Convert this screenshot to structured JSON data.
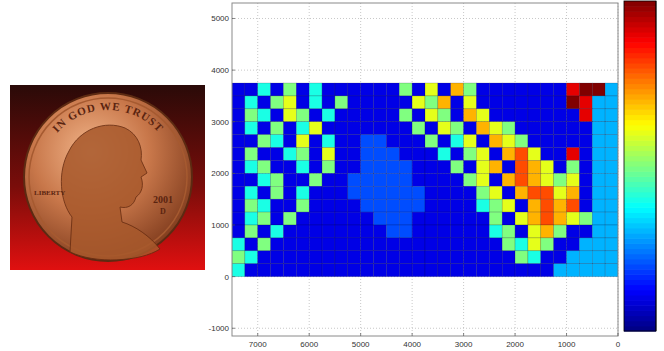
{
  "photo": {
    "inscription": "IN GOD WE TRUST",
    "liberty": "LIBERTY",
    "year": "2001",
    "mint_mark": "D"
  },
  "chart_data": {
    "type": "heatmap",
    "x": [
      7375,
      7125,
      6875,
      6625,
      6375,
      6125,
      5875,
      5625,
      5375,
      5125,
      4875,
      4625,
      4375,
      4125,
      3875,
      3625,
      3375,
      3125,
      2875,
      2625,
      2375,
      2125,
      1875,
      1625,
      1375,
      1125,
      875,
      625,
      375,
      125
    ],
    "y": [
      3625,
      3375,
      3125,
      2875,
      2625,
      2375,
      2125,
      1875,
      1625,
      1375,
      1125,
      875,
      625,
      375,
      125
    ],
    "cells": [
      [
        1,
        1,
        4,
        1,
        5,
        1,
        4,
        1,
        1,
        1,
        1,
        1,
        1,
        5,
        1,
        6,
        1,
        7,
        5,
        1,
        1,
        1,
        1,
        1,
        1,
        1,
        9,
        10,
        10,
        3
      ],
      [
        1,
        4,
        1,
        5,
        6,
        1,
        4,
        1,
        5,
        1,
        1,
        1,
        1,
        1,
        6,
        5,
        7,
        1,
        6,
        1,
        1,
        1,
        1,
        1,
        1,
        1,
        10,
        9,
        3,
        3
      ],
      [
        1,
        5,
        4,
        1,
        6,
        5,
        1,
        4,
        1,
        1,
        1,
        1,
        1,
        5,
        1,
        6,
        5,
        1,
        7,
        6,
        1,
        1,
        1,
        1,
        1,
        1,
        1,
        9,
        3,
        3
      ],
      [
        1,
        4,
        1,
        5,
        1,
        4,
        6,
        1,
        1,
        1,
        1,
        1,
        1,
        1,
        5,
        1,
        6,
        5,
        1,
        7,
        6,
        5,
        1,
        1,
        1,
        1,
        1,
        1,
        3,
        3
      ],
      [
        1,
        1,
        5,
        4,
        1,
        6,
        1,
        4,
        1,
        1,
        2,
        2,
        1,
        1,
        1,
        5,
        1,
        4,
        6,
        1,
        7,
        6,
        5,
        1,
        1,
        1,
        1,
        1,
        3,
        3
      ],
      [
        1,
        5,
        1,
        1,
        4,
        5,
        1,
        6,
        1,
        1,
        2,
        2,
        2,
        1,
        1,
        1,
        4,
        1,
        5,
        6,
        1,
        7,
        8,
        6,
        1,
        1,
        9,
        1,
        3,
        3
      ],
      [
        1,
        4,
        5,
        1,
        1,
        4,
        1,
        5,
        1,
        1,
        2,
        2,
        2,
        2,
        1,
        1,
        1,
        5,
        1,
        6,
        7,
        1,
        8,
        7,
        6,
        1,
        5,
        1,
        3,
        3
      ],
      [
        1,
        1,
        4,
        5,
        1,
        1,
        5,
        1,
        1,
        2,
        2,
        2,
        2,
        2,
        1,
        1,
        1,
        1,
        5,
        6,
        1,
        7,
        8,
        7,
        6,
        5,
        6,
        1,
        3,
        3
      ],
      [
        1,
        4,
        1,
        5,
        1,
        4,
        1,
        1,
        1,
        2,
        2,
        2,
        2,
        2,
        2,
        1,
        1,
        1,
        1,
        5,
        6,
        1,
        7,
        8,
        8,
        6,
        7,
        1,
        3,
        3
      ],
      [
        1,
        5,
        4,
        1,
        1,
        5,
        1,
        1,
        1,
        1,
        2,
        2,
        2,
        2,
        2,
        1,
        1,
        1,
        1,
        4,
        5,
        6,
        1,
        7,
        8,
        7,
        8,
        1,
        3,
        3
      ],
      [
        1,
        4,
        5,
        1,
        5,
        1,
        1,
        1,
        1,
        1,
        1,
        2,
        2,
        2,
        1,
        1,
        1,
        1,
        1,
        1,
        5,
        1,
        6,
        7,
        8,
        7,
        6,
        5,
        3,
        3
      ],
      [
        1,
        5,
        1,
        4,
        1,
        1,
        1,
        1,
        1,
        1,
        1,
        1,
        2,
        2,
        1,
        1,
        1,
        1,
        1,
        1,
        4,
        5,
        1,
        6,
        7,
        5,
        1,
        1,
        3,
        3
      ],
      [
        4,
        1,
        5,
        1,
        1,
        1,
        1,
        1,
        1,
        1,
        1,
        1,
        1,
        1,
        1,
        1,
        1,
        1,
        1,
        1,
        1,
        5,
        4,
        6,
        5,
        1,
        1,
        3,
        3,
        3
      ],
      [
        5,
        4,
        1,
        1,
        1,
        1,
        1,
        1,
        1,
        1,
        1,
        1,
        1,
        1,
        1,
        1,
        1,
        1,
        1,
        1,
        1,
        1,
        5,
        4,
        1,
        1,
        3,
        3,
        3,
        3
      ],
      [
        4,
        1,
        1,
        1,
        1,
        1,
        1,
        1,
        1,
        1,
        1,
        1,
        1,
        1,
        1,
        1,
        1,
        1,
        1,
        1,
        1,
        1,
        1,
        1,
        1,
        3,
        3,
        3,
        3,
        3
      ]
    ],
    "color_range": [
      0,
      10
    ],
    "xlim": [
      7500,
      0
    ],
    "ylim": [
      -1150,
      5300
    ],
    "xticks": [
      7000,
      6000,
      5000,
      4000,
      3000,
      2000,
      1000,
      0
    ],
    "yticks": [
      -1000,
      0,
      1000,
      2000,
      3000,
      4000,
      5000
    ],
    "grid": true
  }
}
